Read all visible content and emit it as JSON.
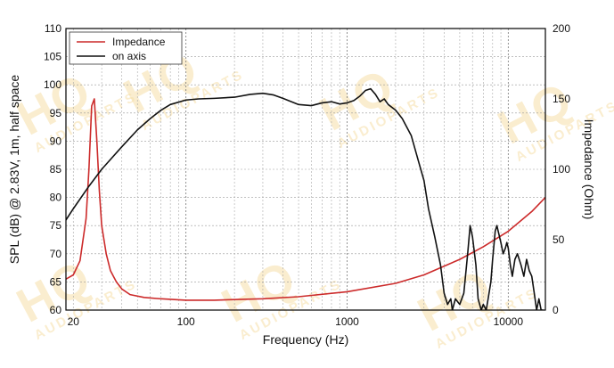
{
  "chart_data": {
    "type": "line",
    "title": "",
    "xlabel": "Frequency (Hz)",
    "ylabel": "SPL (dB) @ 2.83V, 1m, half space",
    "y2label": "Impedance (Ohm)",
    "x_scale": "log",
    "xlim": [
      18,
      17000
    ],
    "ylim": [
      60,
      110
    ],
    "y2lim": [
      0,
      200
    ],
    "x_ticks": [
      20,
      100,
      1000,
      10000
    ],
    "x_tick_labels": [
      "20",
      "100",
      "1000",
      "10000"
    ],
    "y_ticks": [
      60,
      65,
      70,
      75,
      80,
      85,
      90,
      95,
      100,
      105,
      110
    ],
    "y_tick_labels": [
      "60",
      "65",
      "70",
      "75",
      "80",
      "85",
      "90",
      "95",
      "100",
      "105",
      "110"
    ],
    "y2_ticks": [
      0,
      50,
      100,
      150,
      200
    ],
    "y2_tick_labels": [
      "0",
      "50",
      "100",
      "150",
      "200"
    ],
    "grid": true,
    "legend_position": "top-left",
    "series": [
      {
        "name": "Impedance",
        "axis": "right",
        "color": "#cc2a2a",
        "x": [
          18,
          20,
          22,
          24,
          25,
          26,
          27,
          28,
          29,
          30,
          32,
          34,
          37,
          40,
          45,
          55,
          70,
          100,
          150,
          200,
          300,
          500,
          1000,
          2000,
          3000,
          5000,
          7000,
          10000,
          14000,
          17000
        ],
        "y": [
          22,
          25,
          35,
          65,
          100,
          145,
          150,
          120,
          85,
          60,
          40,
          28,
          20,
          15,
          11,
          9,
          8,
          7,
          7,
          7.5,
          8,
          9.5,
          13,
          19,
          25,
          36,
          45,
          56,
          70,
          80
        ]
      },
      {
        "name": "on axis",
        "axis": "left",
        "color": "#111111",
        "x": [
          18,
          20,
          25,
          30,
          40,
          50,
          60,
          70,
          80,
          100,
          120,
          150,
          200,
          250,
          300,
          350,
          400,
          500,
          600,
          700,
          800,
          900,
          1000,
          1100,
          1200,
          1300,
          1400,
          1500,
          1600,
          1700,
          1800,
          2000,
          2200,
          2500,
          2800,
          3000,
          3200,
          3500,
          3800,
          4000,
          4200,
          4400,
          4500,
          4700,
          5000,
          5300,
          5600,
          5800,
          6000,
          6300,
          6500,
          6800,
          7000,
          7300,
          7500,
          7800,
          8000,
          8300,
          8500,
          9000,
          9300,
          9600,
          9800,
          10000,
          10300,
          10600,
          11000,
          11400,
          12000,
          12500,
          13000,
          13500,
          14000,
          14500,
          15000,
          15500,
          16000,
          16500
        ],
        "y": [
          76,
          78,
          82,
          85,
          89,
          92,
          94,
          95.5,
          96.5,
          97.3,
          97.5,
          97.6,
          97.8,
          98.3,
          98.5,
          98.2,
          97.6,
          96.5,
          96.3,
          96.8,
          97,
          96.6,
          96.8,
          97.2,
          98,
          99,
          99.3,
          98.3,
          97,
          97.5,
          96.5,
          95.5,
          94,
          91,
          86,
          83,
          78,
          73,
          68,
          63,
          61,
          62,
          60,
          62,
          61,
          63,
          70,
          75,
          73,
          68,
          62,
          60,
          61,
          60,
          62,
          65,
          69,
          74,
          75,
          72,
          70,
          71,
          72,
          71,
          68,
          66,
          69,
          70,
          68,
          66,
          69,
          67,
          66,
          63,
          60,
          62,
          60,
          60
        ]
      }
    ]
  },
  "watermark": {
    "brand": "HQ",
    "subtext": "AUDIOPARTS"
  }
}
